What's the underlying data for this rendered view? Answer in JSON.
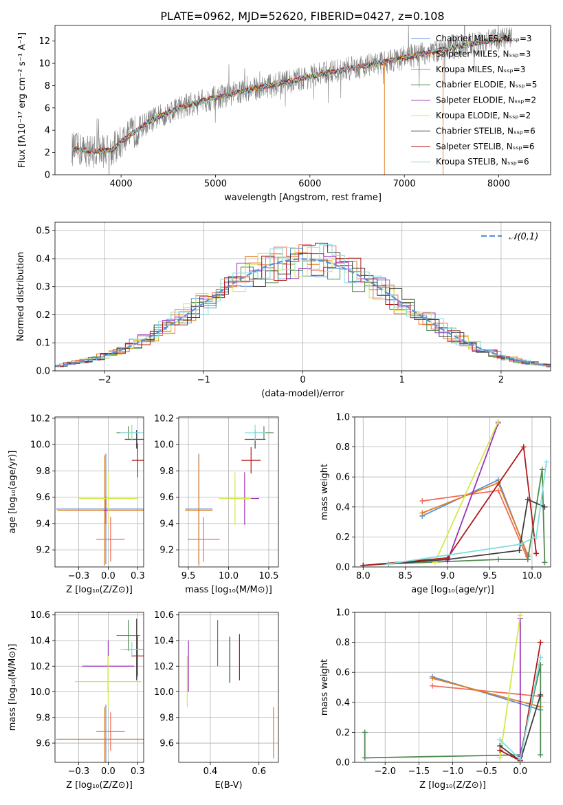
{
  "figure_title": "PLATE=0962, MJD=52620, FIBERID=0427, z=0.108",
  "colors": {
    "Chabrier MILES": "#5b8fd8",
    "Salpeter MILES": "#ef6b5b",
    "Kroupa MILES": "#e07b1a",
    "Chabrier ELODIE": "#4f8a4f",
    "Salpeter ELODIE": "#9b30b8",
    "Kroupa ELODIE": "#d4e84a",
    "Chabrier STELIB": "#3c3c3c",
    "Salpeter STELIB": "#b01818",
    "Kroupa STELIB": "#7fdde0",
    "data": "#808080"
  },
  "chart_data": [
    {
      "id": "spectrum",
      "type": "line",
      "xlabel": "wavelength [Angstrom, rest frame]",
      "ylabel": "Flux [fλ10⁻¹⁷ erg cm⁻² s⁻¹ A⁻¹]",
      "xlim": [
        3300,
        8550
      ],
      "ylim": [
        0,
        13.4
      ],
      "xticks": [
        4000,
        5000,
        6000,
        7000,
        8000
      ],
      "yticks": [
        0,
        2,
        4,
        6,
        8,
        10,
        12
      ],
      "legend_position": "top-right",
      "legend": [
        "Chabrier MILES, N_SSP=3",
        "Salpeter MILES, N_SSP=3",
        "Kroupa MILES, N_SSP=3",
        "Chabrier ELODIE, N_SSP=5",
        "Salpeter ELODIE, N_SSP=2",
        "Kroupa ELODIE, N_SSP=2",
        "Chabrier STELIB, N_SSP=6",
        "Salpeter STELIB, N_SSP=6",
        "Kroupa STELIB, N_SSP=6"
      ],
      "continuum": {
        "x": [
          3500,
          3700,
          3900,
          4100,
          4300,
          4600,
          4900,
          5200,
          5500,
          5800,
          6200,
          6600,
          7000,
          7400,
          7800,
          8100
        ],
        "y": [
          2.3,
          2.1,
          2.2,
          3.6,
          4.8,
          6.0,
          6.7,
          7.3,
          7.9,
          8.4,
          9.2,
          9.8,
          10.5,
          11.2,
          11.9,
          12.2
        ]
      }
    },
    {
      "id": "residuals",
      "type": "line",
      "xlabel": "(data-model)/error",
      "ylabel": "Normed distribution",
      "xlim": [
        -2.5,
        2.5
      ],
      "ylim": [
        0,
        0.53
      ],
      "xticks": [
        -2,
        -1,
        0,
        1,
        2
      ],
      "yticks": [
        0.0,
        0.1,
        0.2,
        0.3,
        0.4,
        0.5
      ],
      "legend": [
        "𝒩(0,1)"
      ],
      "legend_position": "top-right",
      "grid": true
    },
    {
      "id": "z_age",
      "type": "scatter",
      "xlabel": "Z [log10(Z/Z⊙)]",
      "ylabel": "age  [log10(age/yr)]",
      "xlim": [
        -0.45,
        0.3
      ],
      "ylim": [
        9.07,
        10.21
      ],
      "xticks": [
        -0.25,
        0.0,
        0.25
      ],
      "yticks": [
        9.2,
        9.4,
        9.6,
        9.8,
        10.0,
        10.2
      ],
      "grid": true,
      "points": [
        {
          "model": "Chabrier MILES",
          "x": -0.02,
          "xerr": 0.42,
          "y": 9.51,
          "yerr": 0.42
        },
        {
          "model": "Salpeter MILES",
          "x": 0.02,
          "xerr": 0.12,
          "y": 9.28,
          "yerr": 0.17
        },
        {
          "model": "Kroupa MILES",
          "x": -0.03,
          "xerr": 0.4,
          "y": 9.5,
          "yerr": 0.42
        },
        {
          "model": "Chabrier ELODIE",
          "x": 0.17,
          "xerr": 0.1,
          "y": 10.09,
          "yerr": 0.05
        },
        {
          "model": "Salpeter ELODIE",
          "x": -0.02,
          "xerr": 0.02,
          "y": 9.5,
          "yerr": 0.1
        },
        {
          "model": "Kroupa ELODIE",
          "x": 0.0,
          "xerr": 0.25,
          "y": 9.59,
          "yerr": 0.2
        },
        {
          "model": "Chabrier STELIB",
          "x": 0.24,
          "xerr": 0.1,
          "y": 10.04,
          "yerr": 0.07
        },
        {
          "model": "Salpeter STELIB",
          "x": 0.25,
          "xerr": 0.05,
          "y": 9.88,
          "yerr": 0.13
        },
        {
          "model": "Kroupa STELIB",
          "x": 0.2,
          "xerr": 0.1,
          "y": 10.09,
          "yerr": 0.06
        }
      ]
    },
    {
      "id": "mass_age",
      "type": "scatter",
      "xlabel": "mass [log10(M/M⊙)]",
      "ylabel": "",
      "xlim": [
        9.38,
        10.62
      ],
      "ylim": [
        9.07,
        10.21
      ],
      "xticks": [
        9.5,
        10.0,
        10.5
      ],
      "yticks": [
        9.2,
        9.4,
        9.6,
        9.8,
        10.0,
        10.2
      ],
      "grid": true,
      "points": [
        {
          "model": "Chabrier MILES",
          "x": 9.63,
          "xerr": 0.17,
          "y": 9.51,
          "yerr": 0.42
        },
        {
          "model": "Salpeter MILES",
          "x": 9.69,
          "xerr": 0.2,
          "y": 9.28,
          "yerr": 0.17
        },
        {
          "model": "Kroupa MILES",
          "x": 9.63,
          "xerr": 0.17,
          "y": 9.5,
          "yerr": 0.42
        },
        {
          "model": "Chabrier ELODIE",
          "x": 10.44,
          "xerr": 0.12,
          "y": 10.09,
          "yerr": 0.05
        },
        {
          "model": "Salpeter ELODIE",
          "x": 10.2,
          "xerr": 0.18,
          "y": 9.59,
          "yerr": 0.2
        },
        {
          "model": "Kroupa ELODIE",
          "x": 10.08,
          "xerr": 0.2,
          "y": 9.59,
          "yerr": 0.2
        },
        {
          "model": "Chabrier STELIB",
          "x": 10.33,
          "xerr": 0.13,
          "y": 10.04,
          "yerr": 0.07
        },
        {
          "model": "Salpeter STELIB",
          "x": 10.28,
          "xerr": 0.12,
          "y": 9.88,
          "yerr": 0.1
        },
        {
          "model": "Kroupa STELIB",
          "x": 10.33,
          "xerr": 0.13,
          "y": 10.09,
          "yerr": 0.06
        }
      ]
    },
    {
      "id": "age_weight",
      "type": "line",
      "xlabel": "age  [log10(age/yr)]",
      "ylabel": "mass weight",
      "xlim": [
        7.9,
        10.22
      ],
      "ylim": [
        0,
        1.0
      ],
      "xticks": [
        8.0,
        8.5,
        9.0,
        9.5,
        10.0
      ],
      "yticks": [
        0.0,
        0.2,
        0.4,
        0.6,
        0.8,
        1.0
      ],
      "grid": true,
      "series": [
        {
          "model": "Chabrier MILES",
          "x": [
            8.7,
            9.6,
            9.95
          ],
          "y": [
            0.34,
            0.58,
            0.07
          ]
        },
        {
          "model": "Salpeter MILES",
          "x": [
            8.7,
            9.6,
            9.95
          ],
          "y": [
            0.44,
            0.51,
            0.05
          ]
        },
        {
          "model": "Kroupa MILES",
          "x": [
            8.7,
            9.6,
            9.95
          ],
          "y": [
            0.36,
            0.56,
            0.08
          ]
        },
        {
          "model": "Chabrier ELODIE",
          "x": [
            8.3,
            9.6,
            9.95,
            10.12,
            10.15
          ],
          "y": [
            0.02,
            0.05,
            0.05,
            0.65,
            0.03
          ]
        },
        {
          "model": "Salpeter ELODIE",
          "x": [
            9.0,
            9.6
          ],
          "y": [
            0.04,
            0.96
          ]
        },
        {
          "model": "Kroupa ELODIE",
          "x": [
            8.85,
            9.6
          ],
          "y": [
            0.03,
            0.97
          ]
        },
        {
          "model": "Chabrier STELIB",
          "x": [
            8.0,
            9.0,
            9.85,
            9.95,
            10.15
          ],
          "y": [
            0.01,
            0.05,
            0.11,
            0.45,
            0.4
          ]
        },
        {
          "model": "Salpeter STELIB",
          "x": [
            8.0,
            9.0,
            9.9,
            10.05
          ],
          "y": [
            0.01,
            0.06,
            0.8,
            0.09
          ]
        },
        {
          "model": "Kroupa STELIB",
          "x": [
            8.3,
            9.85,
            10.05,
            10.17
          ],
          "y": [
            0.02,
            0.15,
            0.2,
            0.7
          ]
        }
      ]
    },
    {
      "id": "z_mass",
      "type": "scatter",
      "xlabel": "Z [log10(Z/Z⊙)]",
      "ylabel": "mass [log10(M/M⊙)]",
      "xlim": [
        -0.45,
        0.3
      ],
      "ylim": [
        9.45,
        10.62
      ],
      "xticks": [
        -0.25,
        0.0,
        0.25
      ],
      "yticks": [
        9.6,
        9.8,
        10.0,
        10.2,
        10.4,
        10.6
      ],
      "grid": true,
      "points": [
        {
          "model": "Chabrier MILES",
          "x": -0.02,
          "xerr": 0.42,
          "y": 9.63,
          "yerr": 0.27
        },
        {
          "model": "Salpeter MILES",
          "x": 0.02,
          "xerr": 0.12,
          "y": 9.69,
          "yerr": 0.15
        },
        {
          "model": "Kroupa MILES",
          "x": -0.03,
          "xerr": 0.4,
          "y": 9.63,
          "yerr": 0.25
        },
        {
          "model": "Chabrier ELODIE",
          "x": 0.17,
          "xerr": 0.1,
          "y": 10.44,
          "yerr": 0.12
        },
        {
          "model": "Salpeter ELODIE",
          "x": 0.0,
          "xerr": 0.22,
          "y": 10.2,
          "yerr": 0.2
        },
        {
          "model": "Kroupa ELODIE",
          "x": 0.0,
          "xerr": 0.28,
          "y": 10.08,
          "yerr": 0.2
        },
        {
          "model": "Chabrier STELIB",
          "x": 0.24,
          "xerr": 0.1,
          "y": 10.33,
          "yerr": 0.24
        },
        {
          "model": "Salpeter STELIB",
          "x": 0.25,
          "xerr": 0.05,
          "y": 10.28,
          "yerr": 0.16
        },
        {
          "model": "Kroupa STELIB",
          "x": 0.2,
          "xerr": 0.1,
          "y": 10.33,
          "yerr": 0.06
        }
      ]
    },
    {
      "id": "ebv_mass",
      "type": "scatter",
      "xlabel": "E(B-V)",
      "ylabel": "",
      "xlim": [
        0.27,
        0.68
      ],
      "ylim": [
        9.45,
        10.62
      ],
      "xticks": [
        0.4,
        0.6
      ],
      "yticks": [
        9.6,
        9.8,
        10.0,
        10.2,
        10.4,
        10.6
      ],
      "grid": true,
      "points": [
        {
          "model": "Salpeter ELODIE",
          "x": 0.31,
          "y": 10.2,
          "yerr": 0.2
        },
        {
          "model": "Kroupa ELODIE",
          "x": 0.305,
          "y": 10.08,
          "yerr": 0.2
        },
        {
          "model": "Chabrier ELODIE",
          "x": 0.43,
          "y": 10.38,
          "yerr": 0.18
        },
        {
          "model": "Chabrier STELIB",
          "x": 0.48,
          "y": 10.25,
          "yerr": 0.18
        },
        {
          "model": "Salpeter STELIB",
          "x": 0.52,
          "y": 10.27,
          "yerr": 0.18
        },
        {
          "model": "Kroupa MILES",
          "x": 0.66,
          "y": 9.68,
          "yerr": 0.2
        }
      ]
    },
    {
      "id": "z_weight",
      "type": "line",
      "xlabel": "Z [log10(Z/Z⊙)]",
      "ylabel": "mass weight",
      "xlim": [
        -2.45,
        0.45
      ],
      "ylim": [
        0,
        1.0
      ],
      "xticks": [
        -2.0,
        -1.5,
        -1.0,
        -0.5,
        0.0
      ],
      "yticks": [
        0.0,
        0.2,
        0.4,
        0.6,
        0.8,
        1.0
      ],
      "grid": true,
      "series": [
        {
          "model": "Chabrier MILES",
          "x": [
            -1.3,
            0.3
          ],
          "y": [
            0.57,
            0.35
          ]
        },
        {
          "model": "Salpeter MILES",
          "x": [
            -1.3,
            0.3
          ],
          "y": [
            0.51,
            0.44
          ]
        },
        {
          "model": "Kroupa MILES",
          "x": [
            -1.3,
            0.3
          ],
          "y": [
            0.56,
            0.37
          ]
        },
        {
          "model": "Chabrier ELODIE",
          "x": [
            -2.3,
            -2.3,
            0.0,
            0.3,
            0.3
          ],
          "y": [
            0.2,
            0.03,
            0.05,
            0.65,
            0.05
          ]
        },
        {
          "model": "Salpeter ELODIE",
          "x": [
            0.0,
            0.0
          ],
          "y": [
            0.96,
            0.04
          ]
        },
        {
          "model": "Kroupa ELODIE",
          "x": [
            -0.3,
            0.0
          ],
          "y": [
            0.03,
            0.98
          ]
        },
        {
          "model": "Chabrier STELIB",
          "x": [
            -0.3,
            0.0,
            0.3
          ],
          "y": [
            0.11,
            0.01,
            0.45
          ]
        },
        {
          "model": "Salpeter STELIB",
          "x": [
            -0.3,
            0.0,
            0.3
          ],
          "y": [
            0.08,
            0.01,
            0.8
          ]
        },
        {
          "model": "Kroupa STELIB",
          "x": [
            -0.3,
            0.0,
            0.3
          ],
          "y": [
            0.15,
            0.02,
            0.7
          ]
        }
      ]
    }
  ]
}
